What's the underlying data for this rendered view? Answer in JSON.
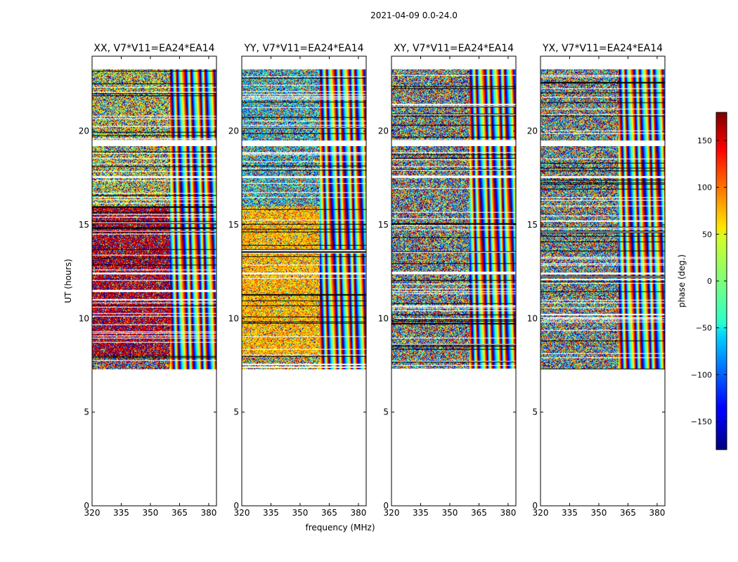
{
  "figure_title": "2021-04-09 0.0-24.0",
  "chart_data": {
    "type": "heatmap",
    "shared_xlabel": "frequency (MHz)",
    "shared_ylabel": "UT (hours)",
    "xlim": [
      320,
      384
    ],
    "ylim": [
      0,
      24
    ],
    "x_ticks": [
      320,
      335,
      350,
      365,
      380
    ],
    "y_ticks": [
      0,
      5,
      10,
      15,
      20
    ],
    "data_time_range_hours": [
      7.3,
      23.3
    ],
    "band_edges_mhz": [
      360,
      380
    ],
    "panels": [
      {
        "id": "xx",
        "title": "XX, V7*V11=EA24*EA14",
        "base_phase_deg": 160,
        "late_phase_deg": 40,
        "coherence": 0.7
      },
      {
        "id": "yy",
        "title": "YY, V7*V11=EA24*EA14",
        "base_phase_deg": 70,
        "late_phase_deg": -60,
        "coherence": 0.75
      },
      {
        "id": "xy",
        "title": "XY, V7*V11=EA24*EA14",
        "base_phase_deg": 0,
        "late_phase_deg": 0,
        "coherence": 0.0
      },
      {
        "id": "yx",
        "title": "YX, V7*V11=EA24*EA14",
        "base_phase_deg": 0,
        "late_phase_deg": 0,
        "coherence": 0.0
      }
    ],
    "colorbar": {
      "label": "phase (deg.)",
      "range": [
        -180,
        180
      ],
      "ticks": [
        150,
        100,
        50,
        0,
        -50,
        -100,
        -150
      ],
      "tick_labels": [
        "150",
        "100",
        "50",
        "0",
        "−50",
        "−100",
        "−150"
      ],
      "colormap": "jet"
    }
  }
}
